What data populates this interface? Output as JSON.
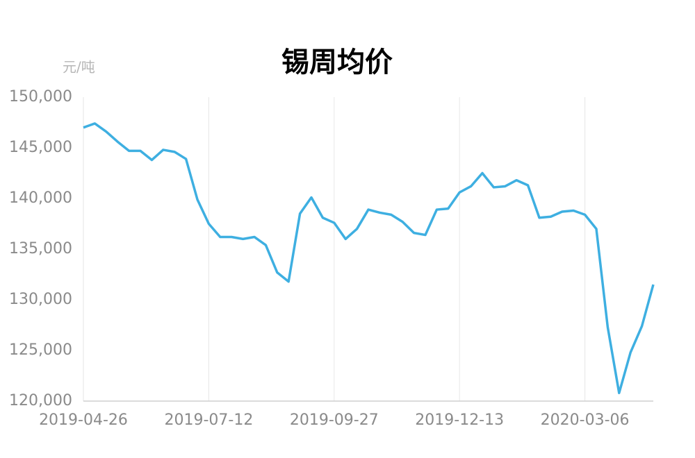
{
  "chart_data": {
    "type": "line",
    "title": "锡周均价",
    "y_label": "元/吨",
    "categories": [
      "2019-04-26",
      null,
      null,
      null,
      null,
      null,
      null,
      null,
      null,
      null,
      null,
      "2019-07-12",
      null,
      null,
      null,
      null,
      null,
      null,
      null,
      null,
      null,
      null,
      "2019-09-27",
      null,
      null,
      null,
      null,
      null,
      null,
      null,
      null,
      null,
      null,
      "2019-12-13",
      null,
      null,
      null,
      null,
      null,
      null,
      null,
      null,
      null,
      null,
      "2020-03-06",
      null,
      null,
      null,
      null,
      null,
      null
    ],
    "values": [
      147000,
      147400,
      146600,
      145600,
      144700,
      144700,
      143800,
      144800,
      144600,
      143900,
      139900,
      137500,
      136200,
      136200,
      136000,
      136200,
      135400,
      132700,
      131800,
      138500,
      140100,
      138100,
      137600,
      136000,
      137000,
      138900,
      138600,
      138400,
      137700,
      136600,
      136400,
      138900,
      139000,
      140600,
      141200,
      142500,
      141100,
      141200,
      141800,
      141300,
      138100,
      138200,
      138700,
      138800,
      138400,
      137000,
      127300,
      120800,
      124800,
      127400,
      131500
    ],
    "color": "#3eafe1",
    "ylim": [
      120000,
      150000
    ],
    "yticks": [
      {
        "value": 120000,
        "label": "120,000"
      },
      {
        "value": 125000,
        "label": "125,000"
      },
      {
        "value": 130000,
        "label": "130,000"
      },
      {
        "value": 135000,
        "label": "135,000"
      },
      {
        "value": 140000,
        "label": "140,000"
      },
      {
        "value": 145000,
        "label": "145,000"
      },
      {
        "value": 150000,
        "label": "150,000"
      }
    ],
    "grid": true
  }
}
